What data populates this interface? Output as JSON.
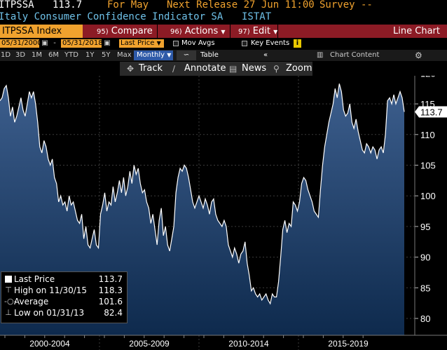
{
  "header": {
    "ticker": "ITPSSA",
    "last_value": "113.7",
    "for_label": "For May",
    "next_release": "Next Release 27 Jun 11:00",
    "survey": "Survey --"
  },
  "description": {
    "name": "Italy Consumer Confidence Indicator SA",
    "source": "ISTAT"
  },
  "function_bar": {
    "security": "ITPSSA Index",
    "compare_num": "95)",
    "compare_label": "Compare",
    "actions_num": "96)",
    "actions_label": "Actions",
    "edit_num": "97)",
    "edit_label": "Edit",
    "chart_type": "Line Chart"
  },
  "range_bar": {
    "start_date": "05/31/2000",
    "end_date": "05/31/2018",
    "price_field": "Last Price",
    "mov_avgs": "Mov Avgs",
    "key_events": "Key Events",
    "key_icon": "i"
  },
  "periods": {
    "items": [
      "1D",
      "3D",
      "1M",
      "6M",
      "YTD",
      "1Y",
      "5Y",
      "Max"
    ],
    "selected": "Monthly",
    "table": "Table",
    "chart_content": "Chart Content"
  },
  "toolbar": {
    "track": "Track",
    "annotate": "Annotate",
    "news": "News",
    "zoom": "Zoom"
  },
  "legend": {
    "last_label": "Last Price",
    "last_value": "113.7",
    "high_label": "High on 11/30/15",
    "high_value": "118.3",
    "avg_label": "Average",
    "avg_value": "101.6",
    "low_label": "Low on 01/31/13",
    "low_value": "82.4"
  },
  "chart_data": {
    "type": "area",
    "x_start": "2000-05",
    "x_end": "2018-05",
    "frequency": "monthly",
    "y_ticks": [
      80,
      85,
      90,
      95,
      100,
      105,
      110,
      115,
      120
    ],
    "x_labels": [
      "2000-2004",
      "2005-2009",
      "2010-2014",
      "2015-2019"
    ],
    "last_value_label": "113.7",
    "colors": {
      "line": "#ffffff",
      "fill_top": "#3d5f8e",
      "fill_bottom": "#0e2a4d"
    },
    "values": [
      115.5,
      116.0,
      117.5,
      118.0,
      116.0,
      113.0,
      114.5,
      112.0,
      113.0,
      114.5,
      116.0,
      114.0,
      113.0,
      115.0,
      117.0,
      116.0,
      117.0,
      115.0,
      112.0,
      108.0,
      107.0,
      109.0,
      108.0,
      106.0,
      105.0,
      106.0,
      103.0,
      102.0,
      99.0,
      100.0,
      98.5,
      99.0,
      97.5,
      100.0,
      98.5,
      99.0,
      97.5,
      96.0,
      95.5,
      97.0,
      93.0,
      95.0,
      92.0,
      91.5,
      93.0,
      94.5,
      92.0,
      91.5,
      97.0,
      98.5,
      100.5,
      97.5,
      99.0,
      98.5,
      101.5,
      99.0,
      100.5,
      102.5,
      100.5,
      103.0,
      100.0,
      101.5,
      104.0,
      102.0,
      105.0,
      103.5,
      104.5,
      102.0,
      100.5,
      101.0,
      99.0,
      98.0,
      95.5,
      97.0,
      94.5,
      92.0,
      96.0,
      98.0,
      93.5,
      95.0,
      92.0,
      91.0,
      93.0,
      95.0,
      100.5,
      103.0,
      104.5,
      104.0,
      105.0,
      104.5,
      103.0,
      101.0,
      99.0,
      98.0,
      99.0,
      100.0,
      99.0,
      98.0,
      99.5,
      98.5,
      97.0,
      99.0,
      99.5,
      97.0,
      96.0,
      95.5,
      95.0,
      96.0,
      95.0,
      92.0,
      91.0,
      90.0,
      91.5,
      90.5,
      89.0,
      90.5,
      91.0,
      92.5,
      89.0,
      87.0,
      84.5,
      85.0,
      84.0,
      83.5,
      84.0,
      83.0,
      83.5,
      84.0,
      83.0,
      82.4,
      84.0,
      83.5,
      83.5,
      86.0,
      90.0,
      94.5,
      96.0,
      94.0,
      95.5,
      95.0,
      99.0,
      98.5,
      97.5,
      99.0,
      102.0,
      103.0,
      102.5,
      101.0,
      100.0,
      99.0,
      97.5,
      97.0,
      96.5,
      101.0,
      105.0,
      108.0,
      110.0,
      112.0,
      113.5,
      115.0,
      117.5,
      116.0,
      118.3,
      117.0,
      114.0,
      113.0,
      113.5,
      115.0,
      112.0,
      111.0,
      112.5,
      110.5,
      109.0,
      107.5,
      107.0,
      108.5,
      108.0,
      107.0,
      108.0,
      107.5,
      106.0,
      107.5,
      108.0,
      107.0,
      110.0,
      115.5,
      116.0,
      115.0,
      116.5,
      115.0,
      116.0,
      117.0,
      116.0,
      113.7
    ]
  }
}
